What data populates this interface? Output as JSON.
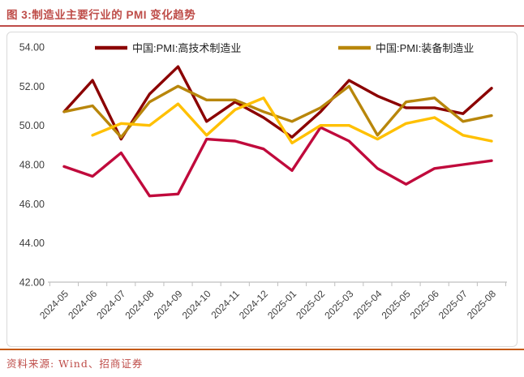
{
  "title": "图 3:制造业主要行业的 PMI 变化趋势",
  "footer": {
    "source": "资料来源: Wind、招商证券"
  },
  "colors": {
    "title": "#BE4C48",
    "title_rule": "#BE4C48",
    "footer_rule": "#C45911",
    "axis": "#BFBFBF",
    "tick_text": "#404040",
    "legend_text": "#1F1F1F"
  },
  "chart_data": {
    "type": "line",
    "categories": [
      "2024-05",
      "2024-06",
      "2024-07",
      "2024-08",
      "2024-09",
      "2024-10",
      "2024-11",
      "2024-12",
      "2025-01",
      "2025-02",
      "2025-03",
      "2025-04",
      "2025-05",
      "2025-06",
      "2025-07",
      "2025-08"
    ],
    "series": [
      {
        "name": "中国:PMI:高技术制造业",
        "color": "#8B0000",
        "in_legend": true,
        "values": [
          50.7,
          52.3,
          49.3,
          51.6,
          53.0,
          50.2,
          51.2,
          50.4,
          49.4,
          50.7,
          52.3,
          51.5,
          50.9,
          50.9,
          50.6,
          51.9
        ]
      },
      {
        "name": "中国:PMI:装备制造业",
        "color": "#B8860B",
        "in_legend": true,
        "values": [
          50.7,
          51.0,
          49.4,
          51.2,
          52.0,
          51.3,
          51.3,
          50.7,
          50.2,
          50.9,
          52.0,
          49.5,
          51.2,
          51.4,
          50.2,
          50.5
        ]
      },
      {
        "name": "",
        "color": "#C00A3C",
        "in_legend": false,
        "values": [
          47.9,
          47.4,
          48.6,
          46.4,
          46.5,
          49.3,
          49.2,
          48.8,
          47.7,
          49.9,
          49.2,
          47.8,
          47.0,
          47.8,
          48.0,
          48.2
        ]
      },
      {
        "name": "",
        "color": "#FFC000",
        "in_legend": false,
        "values": [
          null,
          49.5,
          50.1,
          50.0,
          51.1,
          49.5,
          50.8,
          51.4,
          49.1,
          50.0,
          50.0,
          49.3,
          50.1,
          50.4,
          49.5,
          49.2
        ]
      }
    ],
    "ylim": [
      42,
      54
    ],
    "ytick_step": 2,
    "ytick_labels": [
      "54.00",
      "52.00",
      "50.00",
      "48.00",
      "46.00",
      "44.00",
      "42.00"
    ],
    "xtick_rotation": -45,
    "grid": false,
    "legend_position": "top-center"
  }
}
